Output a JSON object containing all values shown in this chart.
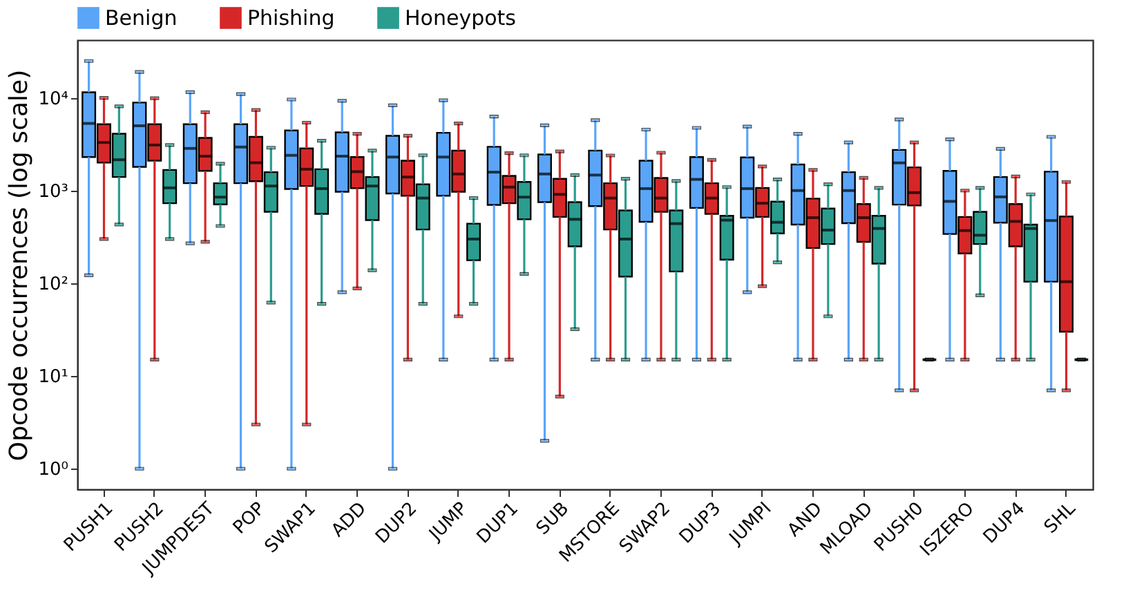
{
  "chart_data": {
    "type": "box",
    "ylabel": "Opcode occurrences (log scale)",
    "log": true,
    "legend": "top",
    "ylim": [
      0.6,
      42000
    ],
    "yticks": [
      {
        "value": 1,
        "label": "10⁰"
      },
      {
        "value": 10,
        "label": "10¹"
      },
      {
        "value": 100,
        "label": "10²"
      },
      {
        "value": 1000,
        "label": "10³"
      },
      {
        "value": 10000,
        "label": "10⁴"
      }
    ],
    "categories": [
      "PUSH1",
      "PUSH2",
      "JUMPDEST",
      "POP",
      "SWAP1",
      "ADD",
      "DUP2",
      "JUMP",
      "DUP1",
      "SUB",
      "MSTORE",
      "SWAP2",
      "DUP3",
      "JUMPI",
      "AND",
      "MLOAD",
      "PUSH0",
      "ISZERO",
      "DUP4",
      "SHL"
    ],
    "series": [
      {
        "name": "Benign",
        "color": "#5aa5f8",
        "boxes": [
          {
            "low": 122,
            "q1": 2300,
            "median": 5300,
            "q3": 11500,
            "high": 25000
          },
          {
            "low": 1,
            "q1": 1800,
            "median": 5000,
            "q3": 8900,
            "high": 19000
          },
          {
            "low": 270,
            "q1": 1200,
            "median": 2850,
            "q3": 5200,
            "high": 11500
          },
          {
            "low": 1,
            "q1": 1200,
            "median": 2950,
            "q3": 5200,
            "high": 11000
          },
          {
            "low": 1,
            "q1": 1040,
            "median": 2400,
            "q3": 4450,
            "high": 9600
          },
          {
            "low": 80,
            "q1": 970,
            "median": 2350,
            "q3": 4250,
            "high": 9300
          },
          {
            "low": 1,
            "q1": 930,
            "median": 2300,
            "q3": 3900,
            "high": 8300
          },
          {
            "low": 15,
            "q1": 880,
            "median": 2300,
            "q3": 4200,
            "high": 9400
          },
          {
            "low": 15,
            "q1": 700,
            "median": 1580,
            "q3": 2970,
            "high": 6300
          },
          {
            "low": 2,
            "q1": 750,
            "median": 1510,
            "q3": 2450,
            "high": 5050
          },
          {
            "low": 15,
            "q1": 680,
            "median": 1470,
            "q3": 2700,
            "high": 5750
          },
          {
            "low": 15,
            "q1": 460,
            "median": 1050,
            "q3": 2100,
            "high": 4550
          },
          {
            "low": 15,
            "q1": 650,
            "median": 1320,
            "q3": 2300,
            "high": 4750
          },
          {
            "low": 80,
            "q1": 510,
            "median": 1050,
            "q3": 2280,
            "high": 4900
          },
          {
            "low": 15,
            "q1": 430,
            "median": 1000,
            "q3": 1910,
            "high": 4100
          },
          {
            "low": 15,
            "q1": 445,
            "median": 1000,
            "q3": 1580,
            "high": 3300
          },
          {
            "low": 7,
            "q1": 705,
            "median": 1990,
            "q3": 2750,
            "high": 5850
          },
          {
            "low": 15,
            "q1": 340,
            "median": 765,
            "q3": 1630,
            "high": 3570
          },
          {
            "low": 15,
            "q1": 450,
            "median": 855,
            "q3": 1400,
            "high": 2820
          },
          {
            "low": 7,
            "q1": 104,
            "median": 475,
            "q3": 1600,
            "high": 3800
          }
        ]
      },
      {
        "name": "Phishing",
        "color": "#d62728",
        "boxes": [
          {
            "low": 300,
            "q1": 2000,
            "median": 3300,
            "q3": 5200,
            "high": 10000
          },
          {
            "low": 15,
            "q1": 2100,
            "median": 3100,
            "q3": 5200,
            "high": 9900
          },
          {
            "low": 280,
            "q1": 1630,
            "median": 2350,
            "q3": 3700,
            "high": 7000
          },
          {
            "low": 3,
            "q1": 1260,
            "median": 2000,
            "q3": 3800,
            "high": 7400
          },
          {
            "low": 3,
            "q1": 1120,
            "median": 1700,
            "q3": 2850,
            "high": 5400
          },
          {
            "low": 88,
            "q1": 1060,
            "median": 1600,
            "q3": 2300,
            "high": 4100
          },
          {
            "low": 15,
            "q1": 880,
            "median": 1400,
            "q3": 2100,
            "high": 3900
          },
          {
            "low": 44,
            "q1": 970,
            "median": 1510,
            "q3": 2700,
            "high": 5300
          },
          {
            "low": 15,
            "q1": 730,
            "median": 1090,
            "q3": 1440,
            "high": 2530
          },
          {
            "low": 6,
            "q1": 520,
            "median": 910,
            "q3": 1340,
            "high": 2640
          },
          {
            "low": 15,
            "q1": 380,
            "median": 830,
            "q3": 1200,
            "high": 2390
          },
          {
            "low": 15,
            "q1": 590,
            "median": 830,
            "q3": 1370,
            "high": 2560
          },
          {
            "low": 15,
            "q1": 560,
            "median": 830,
            "q3": 1200,
            "high": 2140
          },
          {
            "low": 93,
            "q1": 520,
            "median": 730,
            "q3": 1070,
            "high": 1820
          },
          {
            "low": 15,
            "q1": 240,
            "median": 510,
            "q3": 820,
            "high": 1670
          },
          {
            "low": 15,
            "q1": 280,
            "median": 510,
            "q3": 715,
            "high": 1370
          },
          {
            "low": 7,
            "q1": 690,
            "median": 950,
            "q3": 1780,
            "high": 3300
          },
          {
            "low": 15,
            "q1": 210,
            "median": 370,
            "q3": 520,
            "high": 1000
          },
          {
            "low": 15,
            "q1": 250,
            "median": 465,
            "q3": 715,
            "high": 1420
          },
          {
            "low": 7,
            "q1": 30,
            "median": 104,
            "q3": 525,
            "high": 1240
          }
        ]
      },
      {
        "name": "Honeypots",
        "color": "#2a9d8f",
        "boxes": [
          {
            "low": 430,
            "q1": 1400,
            "median": 2150,
            "q3": 4100,
            "high": 8100
          },
          {
            "low": 300,
            "q1": 730,
            "median": 1070,
            "q3": 1670,
            "high": 3100
          },
          {
            "low": 415,
            "q1": 710,
            "median": 850,
            "q3": 1200,
            "high": 1950
          },
          {
            "low": 62,
            "q1": 590,
            "median": 1120,
            "q3": 1580,
            "high": 2900
          },
          {
            "low": 60,
            "q1": 560,
            "median": 1050,
            "q3": 1700,
            "high": 3450
          },
          {
            "low": 138,
            "q1": 480,
            "median": 1120,
            "q3": 1400,
            "high": 2700
          },
          {
            "low": 60,
            "q1": 380,
            "median": 830,
            "q3": 1170,
            "high": 2400
          },
          {
            "low": 60,
            "q1": 177,
            "median": 300,
            "q3": 440,
            "high": 830
          },
          {
            "low": 126,
            "q1": 490,
            "median": 850,
            "q3": 1240,
            "high": 2400
          },
          {
            "low": 32,
            "q1": 250,
            "median": 490,
            "q3": 750,
            "high": 1470
          },
          {
            "low": 15,
            "q1": 118,
            "median": 300,
            "q3": 610,
            "high": 1340
          },
          {
            "low": 15,
            "q1": 134,
            "median": 440,
            "q3": 610,
            "high": 1270
          },
          {
            "low": 15,
            "q1": 180,
            "median": 480,
            "q3": 535,
            "high": 1090
          },
          {
            "low": 168,
            "q1": 345,
            "median": 455,
            "q3": 760,
            "high": 1320
          },
          {
            "low": 44,
            "q1": 265,
            "median": 375,
            "q3": 640,
            "high": 1170
          },
          {
            "low": 15,
            "q1": 163,
            "median": 390,
            "q3": 535,
            "high": 1070
          },
          {
            "low": 15,
            "q1": 15,
            "median": 15,
            "q3": 15,
            "high": 15
          },
          {
            "low": 74,
            "q1": 265,
            "median": 330,
            "q3": 590,
            "high": 1070
          },
          {
            "low": 15,
            "q1": 104,
            "median": 390,
            "q3": 430,
            "high": 910
          },
          {
            "low": 15,
            "q1": 15,
            "median": 15,
            "q3": 15,
            "high": 15
          }
        ]
      }
    ]
  }
}
